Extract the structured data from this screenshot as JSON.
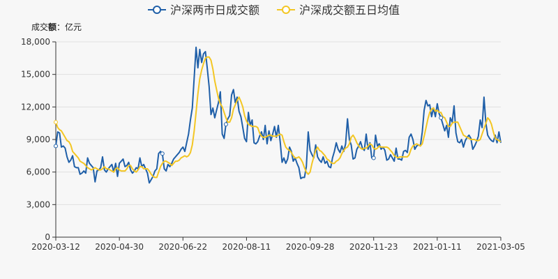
{
  "unit_label_prefix": "成交",
  "unit_label_bold": "额",
  "unit_label_suffix": "：亿元",
  "chart_data": {
    "type": "line",
    "x_ticks": [
      "2020-03-12",
      "2020-04-30",
      "2020-06-22",
      "2020-08-11",
      "2020-09-28",
      "2020-11-23",
      "2021-01-11",
      "2021-03-05"
    ],
    "y_ticks": [
      "0",
      "3,000",
      "6,000",
      "9,000",
      "12,000",
      "15,000",
      "18,000"
    ],
    "ylim": [
      0,
      18000
    ],
    "grid": "horizontal",
    "legend_position": "top-center",
    "series": [
      {
        "name": "沪深两市日成交额",
        "color": "#1f5fa8",
        "values": [
          8400,
          9700,
          9600,
          8300,
          8400,
          8200,
          7400,
          6900,
          7100,
          7500,
          6500,
          6400,
          6400,
          5800,
          5900,
          6100,
          5900,
          7300,
          6800,
          6600,
          6400,
          5100,
          6100,
          6200,
          6400,
          7400,
          6200,
          6000,
          6300,
          6500,
          6700,
          6000,
          6800,
          5600,
          6800,
          7000,
          7200,
          6500,
          6600,
          6900,
          6200,
          5900,
          6100,
          6400,
          6300,
          7300,
          6500,
          6700,
          6300,
          5900,
          5000,
          5300,
          5600,
          6100,
          6300,
          7700,
          7900,
          7700,
          6300,
          6100,
          6700,
          6500,
          6800,
          7200,
          7400,
          7600,
          7800,
          8100,
          8300,
          7900,
          8700,
          9500,
          10800,
          11900,
          14700,
          17500,
          15600,
          17300,
          16100,
          16900,
          17100,
          15600,
          13900,
          11300,
          11900,
          11000,
          11700,
          12400,
          13400,
          9500,
          9100,
          10400,
          10900,
          11200,
          13100,
          13600,
          12400,
          12900,
          11600,
          11100,
          10100,
          9100,
          8800,
          11500,
          10300,
          10800,
          8700,
          8600,
          8800,
          9300,
          9700,
          9000,
          10300,
          8600,
          9800,
          8900,
          9500,
          10200,
          9200,
          10300,
          8800,
          6900,
          7300,
          6800,
          7200,
          8300,
          7900,
          7000,
          7300,
          6800,
          6400,
          5400,
          5500,
          5500,
          6500,
          9700,
          8000,
          7600,
          7300,
          8500,
          7400,
          7100,
          6900,
          7400,
          6800,
          7000,
          6500,
          6400,
          7300,
          7900,
          8700,
          8100,
          7800,
          8400,
          7900,
          8600,
          10900,
          9000,
          8500,
          7200,
          7300,
          8100,
          8400,
          8800,
          8200,
          8000,
          9500,
          8100,
          8700,
          7300,
          7300,
          9400,
          8400,
          8600,
          8100,
          8300,
          8000,
          7100,
          7200,
          7600,
          7300,
          7000,
          8200,
          7200,
          7200,
          7100,
          7900,
          8000,
          7800,
          9200,
          9500,
          9000,
          8100,
          8400,
          8500,
          8400,
          9700,
          11700,
          12600,
          12100,
          12200,
          11100,
          11900,
          11100,
          12300,
          11400,
          11000,
          10400,
          9800,
          10300,
          9200,
          11000,
          10600,
          12100,
          9600,
          8800,
          8700,
          9000,
          8300,
          8900,
          9200,
          9400,
          9100,
          8100,
          8400,
          8800,
          9300,
          10800,
          10100,
          12900,
          10500,
          9400,
          9100,
          8900,
          8800,
          9400,
          8700,
          9700,
          8700
        ]
      },
      {
        "name": "沪深成交额五日均值",
        "color": "#f3c623",
        "values": [
          10600,
          10100,
          9900,
          9800,
          9500,
          9200,
          8900,
          8800,
          8500,
          7900,
          7700,
          7500,
          7300,
          7000,
          6900,
          6800,
          6600,
          6400,
          6300,
          6200,
          6300,
          6400,
          6300,
          6200,
          6200,
          6300,
          6500,
          6300,
          6300,
          6200,
          6100,
          6000,
          6300,
          6400,
          6200,
          6100,
          6100,
          6100,
          6300,
          6600,
          6600,
          6300,
          6100,
          6000,
          6200,
          6500,
          6500,
          6300,
          6300,
          6300,
          6100,
          5800,
          5600,
          5500,
          5500,
          6000,
          6500,
          6800,
          7000,
          7000,
          6900,
          6800,
          6600,
          6800,
          7000,
          7000,
          7100,
          7300,
          7400,
          7500,
          7400,
          7500,
          7800,
          8500,
          9800,
          11500,
          13200,
          14600,
          15400,
          16000,
          16500,
          16600,
          16600,
          16300,
          15500,
          14400,
          13600,
          12800,
          12300,
          12000,
          11500,
          11000,
          10600,
          10600,
          11000,
          11800,
          12200,
          12600,
          12900,
          12500,
          12000,
          11200,
          10700,
          10400,
          10300,
          10200,
          10200,
          10200,
          10100,
          9600,
          9300,
          9200,
          9200,
          9300,
          9400,
          9400,
          9300,
          9300,
          9300,
          9400,
          9500,
          9400,
          8800,
          8300,
          8100,
          8000,
          7800,
          7500,
          7300,
          7300,
          7400,
          7200,
          6900,
          6400,
          6000,
          5800,
          6000,
          6800,
          7400,
          8000,
          8300,
          8000,
          7900,
          7700,
          7500,
          7200,
          7100,
          6900,
          6800,
          6800,
          7000,
          7100,
          7300,
          7700,
          8000,
          8200,
          8300,
          8600,
          9200,
          9400,
          9100,
          8700,
          8400,
          8200,
          8100,
          8200,
          8200,
          8400,
          8600,
          8500,
          8200,
          8100,
          8200,
          8400,
          8300,
          8300,
          8300,
          8300,
          8200,
          8000,
          7800,
          7500,
          7400,
          7300,
          7400,
          7400,
          7400,
          7400,
          7400,
          7600,
          8100,
          8400,
          8500,
          8600,
          8500,
          8400,
          8600,
          9300,
          10100,
          10900,
          11500,
          11800,
          11900,
          11600,
          11700,
          11500,
          11500,
          11100,
          11000,
          10600,
          10200,
          10200,
          10500,
          10600,
          10600,
          10600,
          10200,
          9800,
          9400,
          9300,
          9200,
          9100,
          9000,
          9000,
          9000,
          8900,
          8900,
          9000,
          9500,
          10000,
          10500,
          11000,
          10800,
          10400,
          9700,
          9100,
          9000,
          8900,
          8800
        ]
      }
    ]
  }
}
